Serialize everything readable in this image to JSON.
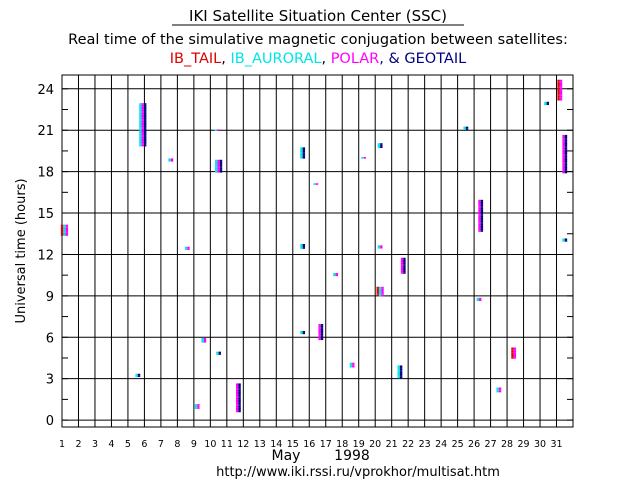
{
  "colors": {
    "ib_tail": "#e00000",
    "ib_auroral": "#00e5e5",
    "polar": "#ff00ff",
    "geotail": "#000080",
    "black": "#000000",
    "background": "#ffffff"
  },
  "chart_data": {
    "type": "scatter",
    "title": "IKI Satellite Situation Center (SSC)",
    "subtitle": "Real time of the simulative magnetic conjugation between satellites:",
    "legend_parts": [
      {
        "text": "IB_TAIL",
        "key": "ib_tail"
      },
      {
        "text": ", ",
        "key": "black"
      },
      {
        "text": "IB_AURORAL",
        "key": "ib_auroral"
      },
      {
        "text": ", ",
        "key": "black"
      },
      {
        "text": "POLAR",
        "key": "polar"
      },
      {
        "text": ", & ",
        "key": "geotail"
      },
      {
        "text": "GEOTAIL",
        "key": "geotail"
      }
    ],
    "ylabel": "Universal time (hours)",
    "xlabel_month": "May",
    "xlabel_year": "1998",
    "footer_url": "http://www.iki.rssi.ru/vprokhor/multisat.htm",
    "xlim": [
      1,
      32
    ],
    "ylim": [
      -0.5,
      25
    ],
    "xticks": [
      1,
      2,
      3,
      4,
      5,
      6,
      7,
      8,
      9,
      10,
      11,
      12,
      13,
      14,
      15,
      16,
      17,
      18,
      19,
      20,
      21,
      22,
      23,
      24,
      25,
      26,
      27,
      28,
      29,
      30,
      31
    ],
    "yticks": [
      0,
      3,
      6,
      9,
      12,
      15,
      18,
      21,
      24
    ],
    "grid": true,
    "series": [
      {
        "name": "IB_TAIL",
        "color_key": "ib_tail"
      },
      {
        "name": "IB_AURORAL",
        "color_key": "ib_auroral"
      },
      {
        "name": "POLAR",
        "color_key": "polar"
      },
      {
        "name": "GEOTAIL",
        "color_key": "geotail"
      }
    ],
    "events": [
      {
        "day": 1.15,
        "start": 13.4,
        "end": 14.1,
        "sats": [
          "ib_tail",
          "ib_auroral",
          "polar"
        ]
      },
      {
        "day": 5.6,
        "start": 3.1,
        "end": 3.3,
        "sats": [
          "ib_auroral",
          "geotail"
        ]
      },
      {
        "day": 5.9,
        "start": 19.8,
        "end": 22.9,
        "sats": [
          "ib_auroral",
          "polar",
          "geotail"
        ]
      },
      {
        "day": 7.6,
        "start": 18.7,
        "end": 18.9,
        "sats": [
          "ib_auroral",
          "polar"
        ]
      },
      {
        "day": 8.6,
        "start": 12.3,
        "end": 12.5,
        "sats": [
          "ib_auroral",
          "polar"
        ]
      },
      {
        "day": 9.2,
        "start": 0.8,
        "end": 1.1,
        "sats": [
          "ib_auroral",
          "polar"
        ]
      },
      {
        "day": 9.6,
        "start": 5.6,
        "end": 5.9,
        "sats": [
          "ib_auroral",
          "polar"
        ]
      },
      {
        "day": 10.5,
        "start": 4.7,
        "end": 4.9,
        "sats": [
          "ib_auroral",
          "geotail"
        ]
      },
      {
        "day": 10.5,
        "start": 17.9,
        "end": 18.8,
        "sats": [
          "ib_auroral",
          "polar",
          "geotail"
        ]
      },
      {
        "day": 10.4,
        "start": 20.9,
        "end": 21.0,
        "sats": [
          "ib_auroral",
          "polar"
        ]
      },
      {
        "day": 11.7,
        "start": 0.6,
        "end": 2.6,
        "sats": [
          "polar",
          "geotail"
        ]
      },
      {
        "day": 15.6,
        "start": 6.2,
        "end": 6.4,
        "sats": [
          "ib_auroral",
          "geotail"
        ]
      },
      {
        "day": 15.6,
        "start": 12.4,
        "end": 12.7,
        "sats": [
          "ib_auroral",
          "geotail"
        ]
      },
      {
        "day": 15.6,
        "start": 18.9,
        "end": 19.7,
        "sats": [
          "ib_auroral",
          "geotail"
        ]
      },
      {
        "day": 16.4,
        "start": 17.0,
        "end": 17.1,
        "sats": [
          "ib_auroral",
          "polar"
        ]
      },
      {
        "day": 16.7,
        "start": 5.8,
        "end": 6.9,
        "sats": [
          "polar",
          "geotail"
        ]
      },
      {
        "day": 17.6,
        "start": 10.4,
        "end": 10.6,
        "sats": [
          "ib_auroral",
          "polar"
        ]
      },
      {
        "day": 18.6,
        "start": 3.8,
        "end": 4.1,
        "sats": [
          "ib_auroral",
          "polar"
        ]
      },
      {
        "day": 19.3,
        "start": 18.9,
        "end": 19.0,
        "sats": [
          "ib_auroral",
          "polar"
        ]
      },
      {
        "day": 20.3,
        "start": 9.0,
        "end": 9.6,
        "sats": [
          "ib_tail",
          "ib_auroral",
          "polar"
        ]
      },
      {
        "day": 20.3,
        "start": 12.4,
        "end": 12.6,
        "sats": [
          "ib_auroral",
          "polar"
        ]
      },
      {
        "day": 20.3,
        "start": 19.7,
        "end": 20.0,
        "sats": [
          "ib_auroral",
          "geotail"
        ]
      },
      {
        "day": 21.5,
        "start": 3.0,
        "end": 3.9,
        "sats": [
          "ib_auroral",
          "geotail"
        ]
      },
      {
        "day": 21.7,
        "start": 10.6,
        "end": 11.7,
        "sats": [
          "polar",
          "geotail"
        ]
      },
      {
        "day": 25.5,
        "start": 21.0,
        "end": 21.2,
        "sats": [
          "ib_auroral",
          "geotail"
        ]
      },
      {
        "day": 26.3,
        "start": 8.6,
        "end": 8.8,
        "sats": [
          "ib_auroral",
          "polar"
        ]
      },
      {
        "day": 26.4,
        "start": 13.6,
        "end": 15.9,
        "sats": [
          "polar",
          "geotail"
        ]
      },
      {
        "day": 27.5,
        "start": 2.0,
        "end": 2.3,
        "sats": [
          "ib_auroral",
          "polar"
        ]
      },
      {
        "day": 28.4,
        "start": 4.4,
        "end": 5.2,
        "sats": [
          "ib_tail",
          "polar"
        ]
      },
      {
        "day": 30.4,
        "start": 22.8,
        "end": 23.0,
        "sats": [
          "ib_auroral",
          "geotail"
        ]
      },
      {
        "day": 31.2,
        "start": 23.2,
        "end": 24.6,
        "sats": [
          "ib_tail",
          "polar"
        ]
      },
      {
        "day": 31.5,
        "start": 17.9,
        "end": 20.6,
        "sats": [
          "polar",
          "geotail"
        ]
      },
      {
        "day": 31.5,
        "start": 12.9,
        "end": 13.1,
        "sats": [
          "ib_auroral",
          "geotail"
        ]
      }
    ]
  }
}
